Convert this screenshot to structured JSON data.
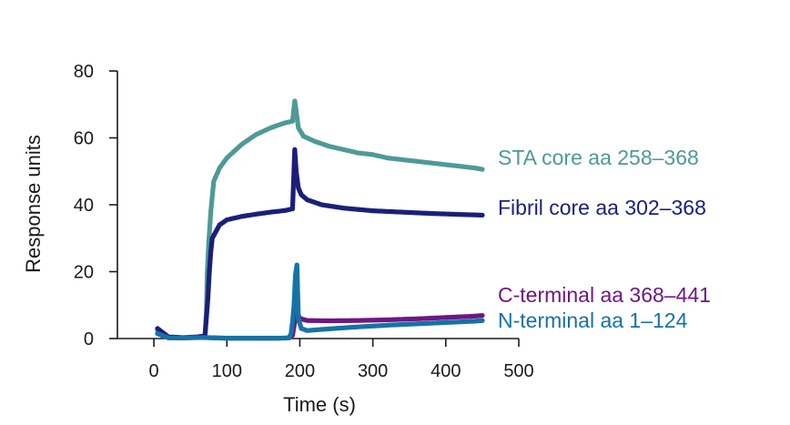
{
  "chart_data": {
    "type": "scatter",
    "xlabel": "Time (s)",
    "ylabel": "Response units",
    "xlim": [
      -50,
      500
    ],
    "ylim": [
      0,
      80
    ],
    "xticks": [
      0,
      100,
      200,
      300,
      400,
      500
    ],
    "yticks": [
      0,
      20,
      40,
      60,
      80
    ],
    "grid": false,
    "legend": "direct labels at right end of each series",
    "series": [
      {
        "name": "STA core aa 258–368",
        "color": "#4e9a96",
        "points": [
          [
            5,
            2.5
          ],
          [
            20,
            0.4
          ],
          [
            40,
            0.2
          ],
          [
            60,
            0.5
          ],
          [
            70,
            0.8
          ],
          [
            72,
            8
          ],
          [
            73,
            19
          ],
          [
            75,
            28
          ],
          [
            78,
            38
          ],
          [
            82,
            47
          ],
          [
            90,
            51
          ],
          [
            100,
            54
          ],
          [
            110,
            56
          ],
          [
            120,
            58
          ],
          [
            130,
            59.5
          ],
          [
            140,
            61
          ],
          [
            150,
            62
          ],
          [
            160,
            63
          ],
          [
            170,
            63.8
          ],
          [
            180,
            64.5
          ],
          [
            190,
            65
          ],
          [
            193,
            71
          ],
          [
            195,
            68
          ],
          [
            198,
            63
          ],
          [
            205,
            60.5
          ],
          [
            220,
            59
          ],
          [
            240,
            57.5
          ],
          [
            260,
            56.5
          ],
          [
            280,
            55.5
          ],
          [
            300,
            55
          ],
          [
            320,
            54
          ],
          [
            340,
            53.5
          ],
          [
            360,
            53
          ],
          [
            380,
            52.5
          ],
          [
            400,
            52
          ],
          [
            420,
            51.5
          ],
          [
            440,
            51
          ],
          [
            450,
            50.6
          ]
        ]
      },
      {
        "name": "Fibril core aa 302–368",
        "color": "#1b1f7a",
        "points": [
          [
            5,
            3
          ],
          [
            20,
            0.5
          ],
          [
            40,
            0.3
          ],
          [
            60,
            0.5
          ],
          [
            70,
            0.8
          ],
          [
            74,
            12
          ],
          [
            76,
            20
          ],
          [
            78,
            26
          ],
          [
            80,
            30
          ],
          [
            85,
            32
          ],
          [
            90,
            34
          ],
          [
            100,
            35.5
          ],
          [
            120,
            36.5
          ],
          [
            140,
            37.2
          ],
          [
            160,
            37.8
          ],
          [
            180,
            38.3
          ],
          [
            190,
            38.8
          ],
          [
            193,
            56.5
          ],
          [
            195,
            50
          ],
          [
            198,
            45
          ],
          [
            202,
            43
          ],
          [
            210,
            41.5
          ],
          [
            230,
            40
          ],
          [
            260,
            39
          ],
          [
            300,
            38.2
          ],
          [
            340,
            37.8
          ],
          [
            380,
            37.4
          ],
          [
            420,
            37.1
          ],
          [
            450,
            36.9
          ]
        ]
      },
      {
        "name": "C-terminal aa 368–441",
        "color": "#6e1784",
        "points": [
          [
            5,
            1.5
          ],
          [
            20,
            0.2
          ],
          [
            40,
            0.2
          ],
          [
            60,
            0.3
          ],
          [
            70,
            0.3
          ],
          [
            100,
            0.1
          ],
          [
            140,
            0.1
          ],
          [
            170,
            0.1
          ],
          [
            185,
            0.2
          ],
          [
            190,
            1
          ],
          [
            193,
            5
          ],
          [
            196,
            8
          ],
          [
            200,
            6
          ],
          [
            210,
            5.4
          ],
          [
            240,
            5.3
          ],
          [
            280,
            5.4
          ],
          [
            320,
            5.6
          ],
          [
            360,
            5.9
          ],
          [
            400,
            6.3
          ],
          [
            440,
            6.7
          ],
          [
            450,
            6.9
          ]
        ]
      },
      {
        "name": "N-terminal aa 1–124",
        "color": "#1672a6",
        "points": [
          [
            5,
            1.5
          ],
          [
            20,
            0.2
          ],
          [
            40,
            0.2
          ],
          [
            60,
            0.3
          ],
          [
            70,
            0.3
          ],
          [
            100,
            0.1
          ],
          [
            140,
            0.1
          ],
          [
            170,
            0.1
          ],
          [
            185,
            0.2
          ],
          [
            188,
            1.5
          ],
          [
            190,
            5
          ],
          [
            192,
            10
          ],
          [
            194,
            19
          ],
          [
            196,
            22
          ],
          [
            198,
            6
          ],
          [
            202,
            3
          ],
          [
            210,
            2.4
          ],
          [
            240,
            2.9
          ],
          [
            280,
            3.5
          ],
          [
            320,
            4
          ],
          [
            360,
            4.4
          ],
          [
            400,
            4.8
          ],
          [
            440,
            5.2
          ],
          [
            450,
            5.4
          ]
        ]
      }
    ]
  }
}
